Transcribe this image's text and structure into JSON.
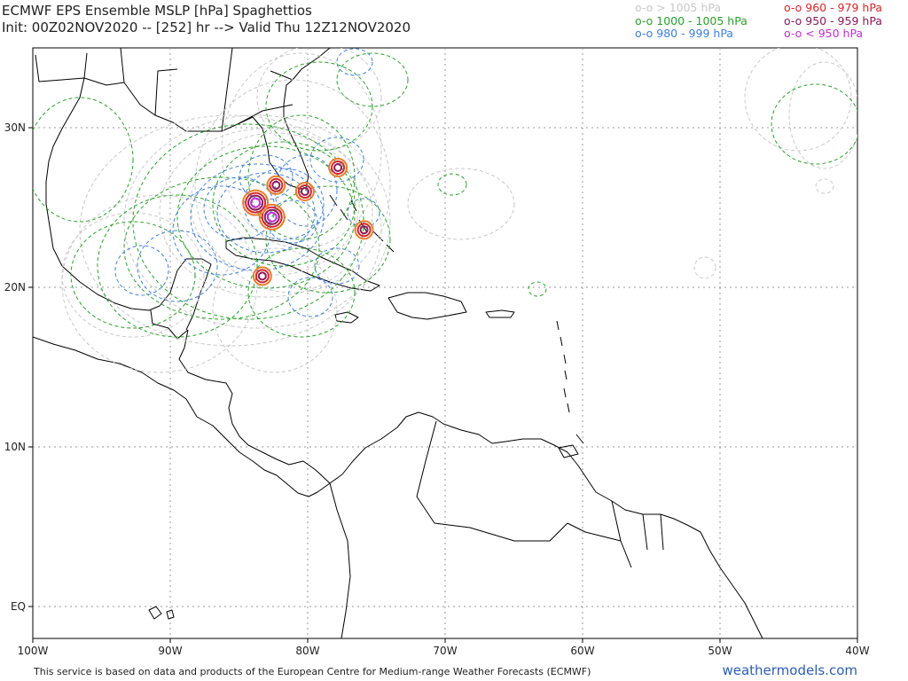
{
  "header": {
    "title": "ECMWF EPS Ensemble MSLP [hPa] Spaghettios",
    "subtitle": "Init: 00Z02NOV2020 -- [252] hr --> Valid Thu 12Z12NOV2020"
  },
  "legend": {
    "left": [
      {
        "label": "o-o > 1005 hPa",
        "color": "#c8c8c8"
      },
      {
        "label": "o-o 1000 - 1005 hPa",
        "color": "#2ca02c"
      },
      {
        "label": "o-o 980 - 999 hPa",
        "color": "#3f7fd6"
      }
    ],
    "right": [
      {
        "label": "o-o 960 - 979 hPa",
        "color": "#d62728"
      },
      {
        "label": "o-o 950 - 959 hPa",
        "color": "#8b1a5a"
      },
      {
        "label": "o-o < 950 hPa",
        "color": "#c22fd0"
      }
    ]
  },
  "axes": {
    "x_ticks": [
      "100W",
      "90W",
      "80W",
      "70W",
      "60W",
      "50W",
      "40W"
    ],
    "x_values": [
      -100,
      -90,
      -80,
      -70,
      -60,
      -50,
      -40
    ],
    "y_ticks": [
      "30N",
      "20N",
      "10N",
      "EQ"
    ],
    "y_values": [
      30,
      20,
      10,
      0
    ],
    "lon_range": [
      -100,
      -40
    ],
    "lat_range": [
      -2,
      35
    ]
  },
  "centers": [
    {
      "lon": -82.6,
      "lat": 24.4,
      "category": "<950"
    },
    {
      "lon": -83.8,
      "lat": 25.3,
      "category": "<950"
    },
    {
      "lon": -80.2,
      "lat": 26.0,
      "category": "960-979"
    },
    {
      "lon": -82.3,
      "lat": 26.4,
      "category": "960-979"
    },
    {
      "lon": -83.3,
      "lat": 20.7,
      "category": "960-979"
    },
    {
      "lon": -77.8,
      "lat": 27.5,
      "category": "960-979"
    },
    {
      "lon": -75.9,
      "lat": 23.6,
      "category": "960-979"
    }
  ],
  "footer": {
    "disclaimer": "This service is based on data and products of the European Centre for Medium-range Weather Forecasts (ECMWF)",
    "brand": "weathermodels.com"
  }
}
